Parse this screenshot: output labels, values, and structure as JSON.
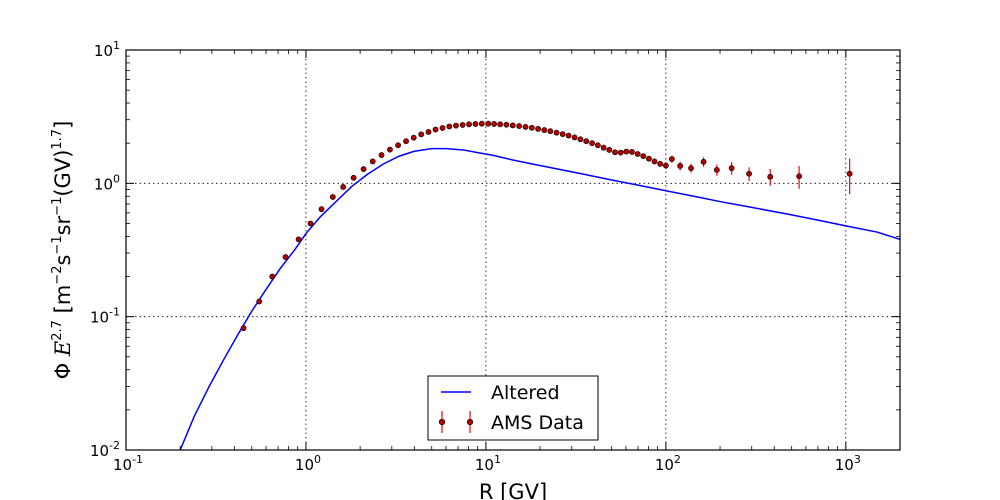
{
  "chart_data": {
    "type": "line",
    "title": "",
    "xlabel": "R [GV]",
    "ylabel": "Φ E^{2.7} [m^{-2}s^{-1}sr^{-1}(GV)^{1.7}]",
    "ylabel_parts": {
      "phi": "Φ",
      "e": "E",
      "e_exp": "2.7",
      "open": "[m",
      "m_exp": "−2",
      "s": "s",
      "s_exp": "−1",
      "sr": "sr",
      "sr_exp": "−1",
      "gv": "(GV)",
      "gv_exp": "1.7",
      "close": "]"
    },
    "xscale": "log",
    "yscale": "log",
    "xlim": [
      0.1,
      2000
    ],
    "ylim": [
      0.01,
      10
    ],
    "grid": true,
    "legend_position": "bottom-center",
    "x_ticks": [
      {
        "value": 0.1,
        "base": "10",
        "exp": "-1"
      },
      {
        "value": 1,
        "base": "10",
        "exp": "0"
      },
      {
        "value": 10,
        "base": "10",
        "exp": "1"
      },
      {
        "value": 100,
        "base": "10",
        "exp": "2"
      },
      {
        "value": 1000,
        "base": "10",
        "exp": "3"
      }
    ],
    "y_ticks": [
      {
        "value": 0.01,
        "base": "10",
        "exp": "-2"
      },
      {
        "value": 0.1,
        "base": "10",
        "exp": "-1"
      },
      {
        "value": 1,
        "base": "10",
        "exp": "0"
      },
      {
        "value": 10,
        "base": "10",
        "exp": "1"
      }
    ],
    "series": [
      {
        "name": "Altered",
        "kind": "line",
        "color": "#0000ff",
        "x": [
          0.2,
          0.24,
          0.29,
          0.35,
          0.42,
          0.5,
          0.6,
          0.72,
          0.87,
          1.0,
          1.2,
          1.5,
          1.8,
          2.2,
          2.7,
          3.3,
          4.0,
          5.0,
          6.0,
          7.5,
          9.0,
          11.0,
          14.0,
          18.0,
          25.0,
          35.0,
          50.0,
          70.0,
          100.0,
          150.0,
          200.0,
          300.0,
          500.0,
          700.0,
          1000.0,
          1500.0,
          2000.0
        ],
        "y": [
          0.01,
          0.018,
          0.03,
          0.048,
          0.074,
          0.11,
          0.16,
          0.23,
          0.32,
          0.42,
          0.56,
          0.75,
          0.95,
          1.17,
          1.4,
          1.6,
          1.74,
          1.82,
          1.82,
          1.78,
          1.7,
          1.62,
          1.5,
          1.4,
          1.28,
          1.17,
          1.06,
          0.97,
          0.88,
          0.79,
          0.73,
          0.66,
          0.58,
          0.53,
          0.48,
          0.43,
          0.38
        ]
      },
      {
        "name": "AMS Data",
        "kind": "errorbar",
        "color": "#ff0000",
        "marker_color": "#b00000",
        "x": [
          0.45,
          0.55,
          0.65,
          0.77,
          0.91,
          1.06,
          1.22,
          1.41,
          1.61,
          1.84,
          2.09,
          2.35,
          2.63,
          2.93,
          3.25,
          3.6,
          3.97,
          4.37,
          4.8,
          5.25,
          5.74,
          6.26,
          6.82,
          7.42,
          8.06,
          8.75,
          9.49,
          10.3,
          11.1,
          12.0,
          13.0,
          14.1,
          15.3,
          16.6,
          18.0,
          19.5,
          21.1,
          22.8,
          24.7,
          26.7,
          28.8,
          31.1,
          33.5,
          36.1,
          38.9,
          41.9,
          45.1,
          48.5,
          52.2,
          56.1,
          60.3,
          64.8,
          69.7,
          74.9,
          80.5,
          86.5,
          93.0,
          100.0,
          108.0,
          120.0,
          138.0,
          162.0,
          192.0,
          232.0,
          290.0,
          380.0,
          550.0,
          1050.0
        ],
        "y": [
          0.082,
          0.13,
          0.2,
          0.28,
          0.38,
          0.5,
          0.64,
          0.79,
          0.94,
          1.1,
          1.28,
          1.46,
          1.63,
          1.79,
          1.93,
          2.07,
          2.2,
          2.33,
          2.43,
          2.53,
          2.6,
          2.67,
          2.71,
          2.74,
          2.77,
          2.79,
          2.8,
          2.8,
          2.79,
          2.77,
          2.75,
          2.72,
          2.69,
          2.65,
          2.61,
          2.56,
          2.51,
          2.46,
          2.4,
          2.34,
          2.28,
          2.21,
          2.14,
          2.07,
          2.0,
          1.93,
          1.85,
          1.78,
          1.71,
          1.7,
          1.73,
          1.72,
          1.66,
          1.6,
          1.53,
          1.46,
          1.4,
          1.36,
          1.52,
          1.35,
          1.3,
          1.45,
          1.26,
          1.3,
          1.18,
          1.12,
          1.13,
          1.18
        ],
        "y_err": [
          0.002,
          0.003,
          0.004,
          0.005,
          0.006,
          0.008,
          0.01,
          0.012,
          0.014,
          0.016,
          0.018,
          0.02,
          0.022,
          0.024,
          0.026,
          0.028,
          0.03,
          0.032,
          0.034,
          0.036,
          0.038,
          0.04,
          0.04,
          0.04,
          0.04,
          0.04,
          0.04,
          0.04,
          0.04,
          0.04,
          0.04,
          0.04,
          0.04,
          0.04,
          0.04,
          0.04,
          0.04,
          0.04,
          0.04,
          0.04,
          0.04,
          0.04,
          0.04,
          0.04,
          0.05,
          0.05,
          0.05,
          0.05,
          0.05,
          0.05,
          0.05,
          0.05,
          0.05,
          0.05,
          0.05,
          0.06,
          0.07,
          0.08,
          0.09,
          0.1,
          0.1,
          0.12,
          0.12,
          0.14,
          0.14,
          0.16,
          0.22,
          0.35
        ]
      }
    ]
  }
}
